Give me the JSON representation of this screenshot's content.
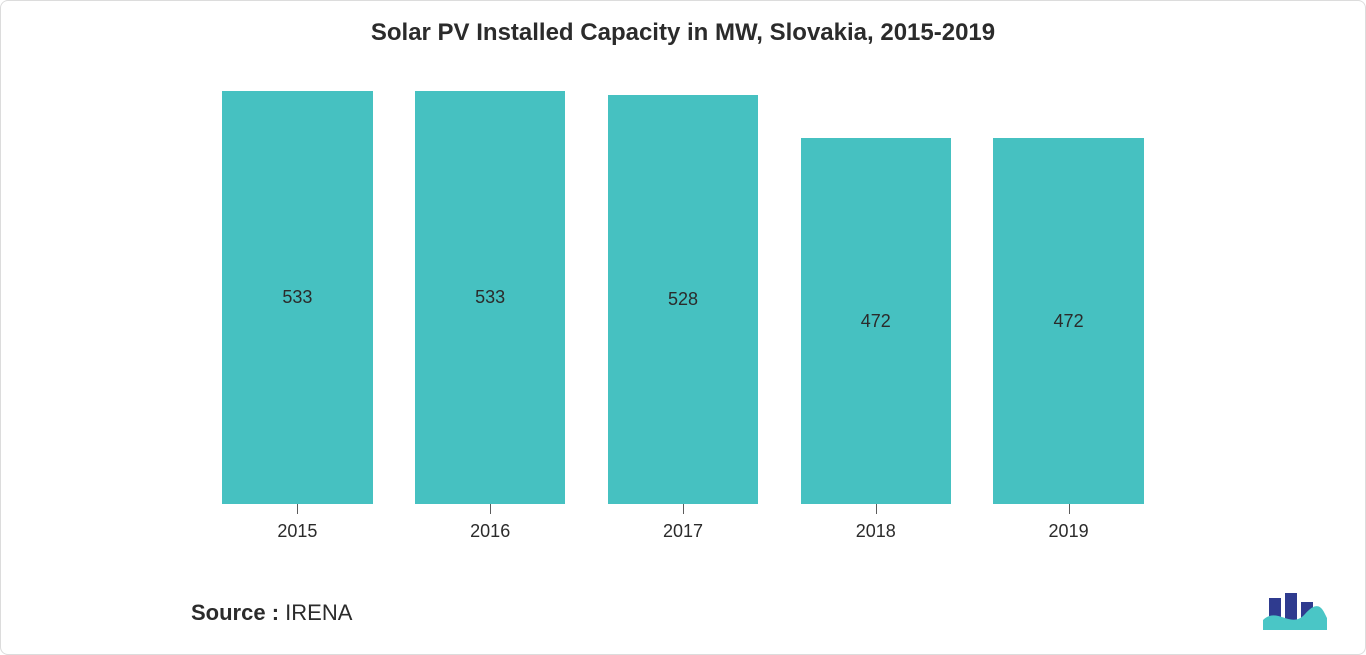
{
  "chart": {
    "type": "bar",
    "title": "Solar PV Installed Capacity in MW, Slovakia, 2015-2019",
    "title_fontsize": 24,
    "title_color": "#2b2b2b",
    "categories": [
      "2015",
      "2016",
      "2017",
      "2018",
      "2019"
    ],
    "values": [
      533,
      533,
      528,
      472,
      472
    ],
    "bar_color": "#46c1c1",
    "value_label_color": "#2b2b2b",
    "value_label_fontsize": 18,
    "category_label_fontsize": 18,
    "background_color": "#ffffff",
    "ylim": [
      0,
      533
    ],
    "bar_width_ratio": 0.78,
    "bars": [
      {
        "category": "2015",
        "value": 533
      },
      {
        "category": "2016",
        "value": 533
      },
      {
        "category": "2017",
        "value": 528
      },
      {
        "category": "2018",
        "value": 472
      },
      {
        "category": "2019",
        "value": 472
      }
    ]
  },
  "footer": {
    "source_label": "Source :",
    "source_value": "IRENA",
    "fontsize": 22
  },
  "logo": {
    "name": "mordor-intelligence-logo",
    "bar_color": "#2f3b8f",
    "wave_color": "#4ac6c6"
  }
}
